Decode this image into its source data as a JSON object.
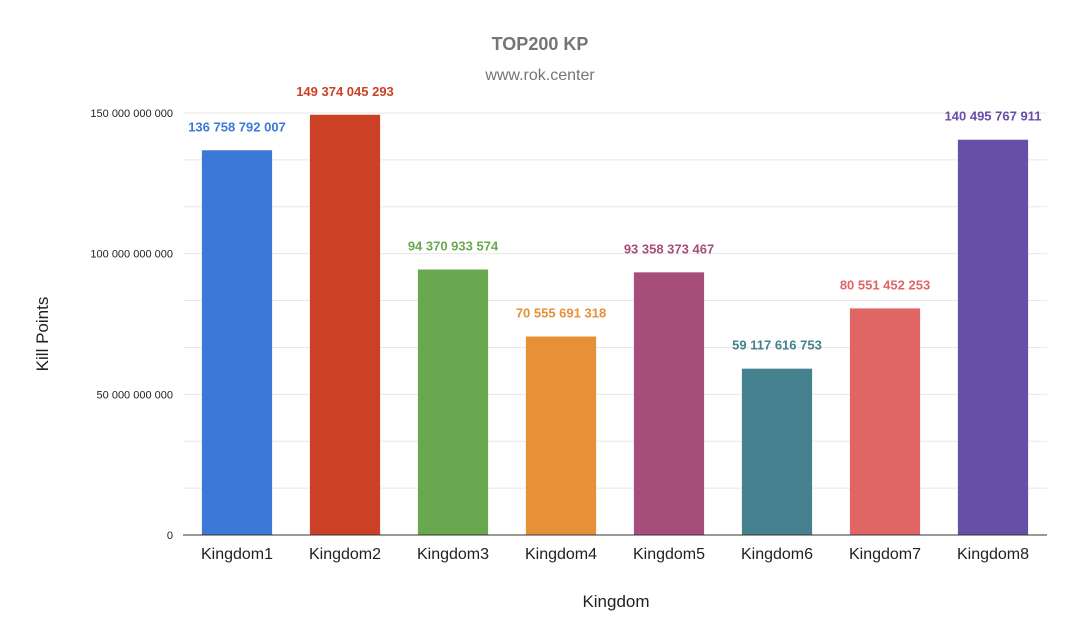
{
  "chart_data": {
    "type": "bar",
    "title": "TOP200 KP",
    "subtitle": "www.rok.center",
    "xlabel": "Kingdom",
    "ylabel": "Kill Points",
    "ylim": [
      0,
      150000000000
    ],
    "yticks": [
      0,
      50000000000,
      100000000000,
      150000000000
    ],
    "ytick_labels": [
      "0",
      "50 000 000 000",
      "100 000 000 000",
      "150 000 000 000"
    ],
    "grid": true,
    "legend": "none",
    "categories": [
      "Kingdom1",
      "Kingdom2",
      "Kingdom3",
      "Kingdom4",
      "Kingdom5",
      "Kingdom6",
      "Kingdom7",
      "Kingdom8"
    ],
    "values": [
      136758792007,
      149374045293,
      94370933574,
      70555691318,
      93358373467,
      59117616753,
      80551452253,
      140495767911
    ],
    "value_labels": [
      "136 758 792 007",
      "149 374 045 293",
      "94 370 933 574",
      "70 555 691 318",
      "93 358 373 467",
      "59 117 616 753",
      "80 551 452 253",
      "140 495 767 911"
    ],
    "colors": [
      "#3c78d8",
      "#cc4125",
      "#6aa84f",
      "#e69138",
      "#a64d79",
      "#45818e",
      "#e06666",
      "#674ea7"
    ],
    "label_colors": [
      "#3c78d8",
      "#cc4125",
      "#6aa84f",
      "#e69138",
      "#a64d79",
      "#45818e",
      "#e06666",
      "#674ea7"
    ]
  }
}
